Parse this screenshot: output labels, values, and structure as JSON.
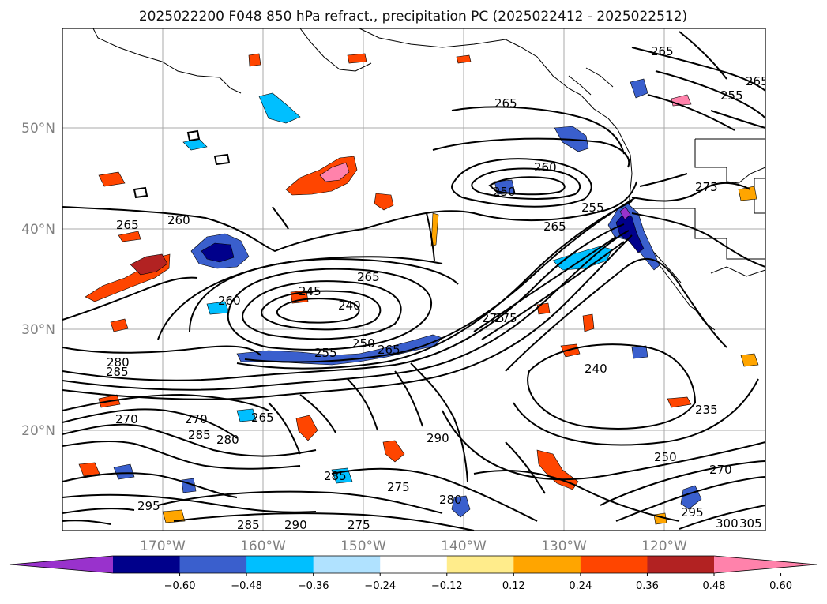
{
  "title": "2025022200 F048 850 hPa refract., precipitation PC (2025022412 - 2025022512)",
  "axes": {
    "lon_ticks": [
      "170°W",
      "160°W",
      "150°W",
      "140°W",
      "130°W",
      "120°W"
    ],
    "lat_ticks": [
      "50°N",
      "40°N",
      "30°N",
      "20°N"
    ]
  },
  "colorbar": {
    "extend": "both",
    "colors": [
      "#9932CC",
      "#00008B",
      "#3A5FCD",
      "#00BFFF",
      "#B0E2FF",
      "#FFFFFF",
      "#FFEC8B",
      "#FFA500",
      "#FF4500",
      "#B22222",
      "#FF82AB"
    ],
    "tick_labels": [
      "−0.60",
      "−0.48",
      "−0.36",
      "−0.24",
      "−0.12",
      "0.12",
      "0.24",
      "0.36",
      "0.48",
      "0.60"
    ]
  },
  "contour_labels": [
    {
      "text": "265"
    },
    {
      "text": "260"
    },
    {
      "text": "265"
    },
    {
      "text": "260"
    },
    {
      "text": "250"
    },
    {
      "text": "255"
    },
    {
      "text": "265"
    },
    {
      "text": "275"
    },
    {
      "text": "245"
    },
    {
      "text": "240"
    },
    {
      "text": "265"
    },
    {
      "text": "260"
    },
    {
      "text": "255"
    },
    {
      "text": "250"
    },
    {
      "text": "265"
    },
    {
      "text": "275"
    },
    {
      "text": "240"
    },
    {
      "text": "235"
    },
    {
      "text": "250"
    },
    {
      "text": "280"
    },
    {
      "text": "285"
    },
    {
      "text": "270"
    },
    {
      "text": "270"
    },
    {
      "text": "285"
    },
    {
      "text": "280"
    },
    {
      "text": "265"
    },
    {
      "text": "285"
    },
    {
      "text": "275"
    },
    {
      "text": "280"
    },
    {
      "text": "295"
    },
    {
      "text": "295"
    },
    {
      "text": "300"
    },
    {
      "text": "305"
    },
    {
      "text": "265"
    },
    {
      "text": "255"
    },
    {
      "text": "265"
    },
    {
      "text": "275"
    },
    {
      "text": "270"
    },
    {
      "text": "290"
    },
    {
      "text": "285"
    },
    {
      "text": "290"
    },
    {
      "text": "275"
    }
  ]
}
